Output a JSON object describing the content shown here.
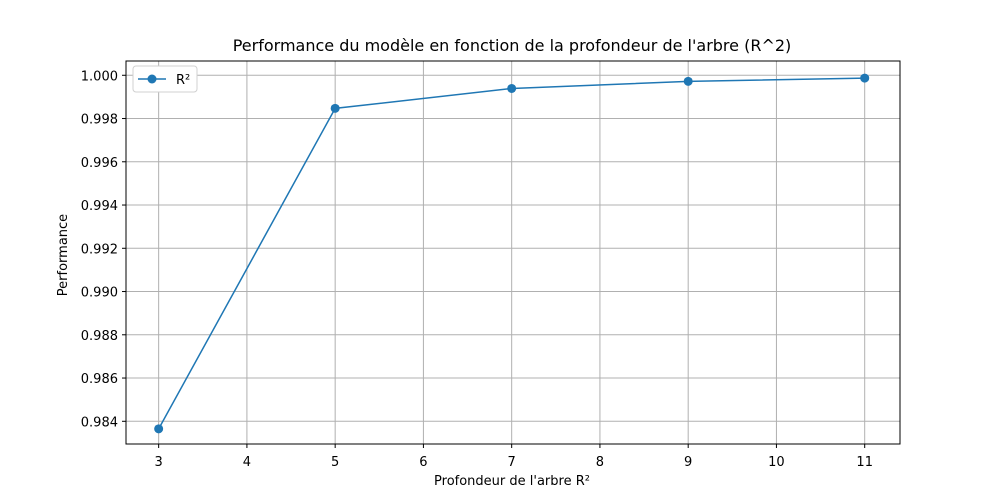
{
  "chart_data": {
    "type": "line",
    "title": "Performance du modèle en fonction de la profondeur de l'arbre (R^2)",
    "xlabel": "Profondeur de l'arbre R²",
    "ylabel": "Performance",
    "xlim": [
      2.63,
      11.4
    ],
    "ylim": [
      0.98295,
      1.00066
    ],
    "x_ticks": [
      3,
      4,
      5,
      6,
      7,
      8,
      9,
      10,
      11
    ],
    "y_ticks": [
      0.984,
      0.986,
      0.988,
      0.99,
      0.992,
      0.994,
      0.996,
      0.998,
      1.0
    ],
    "y_tick_labels": [
      "0.984",
      "0.986",
      "0.988",
      "0.990",
      "0.992",
      "0.994",
      "0.996",
      "0.998",
      "1.000"
    ],
    "grid": true,
    "legend_position": "top-left",
    "series": [
      {
        "name": "R²",
        "color": "#1f77b4",
        "marker": "circle",
        "x": [
          3,
          5,
          7,
          9,
          11
        ],
        "y": [
          0.98365,
          0.99847,
          0.99939,
          0.99972,
          0.99987
        ]
      }
    ]
  }
}
